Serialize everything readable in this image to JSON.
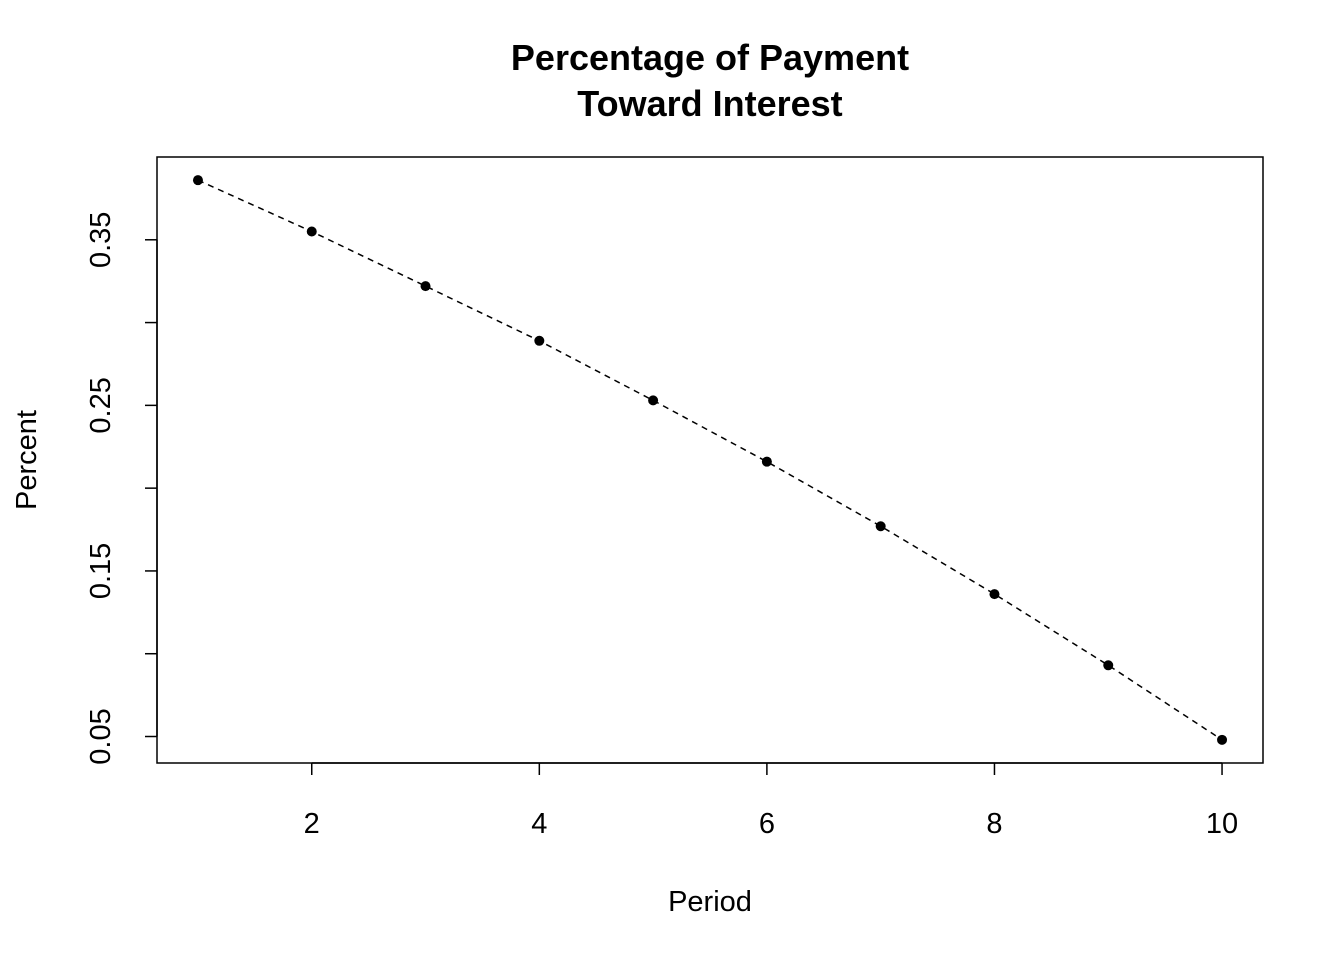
{
  "chart_data": {
    "type": "line",
    "title_lines": [
      "Percentage of Payment",
      "Toward Interest"
    ],
    "xlabel": "Period",
    "ylabel": "Percent",
    "x": [
      1,
      2,
      3,
      4,
      5,
      6,
      7,
      8,
      9,
      10
    ],
    "series": [
      {
        "values": [
          0.386,
          0.355,
          0.322,
          0.289,
          0.253,
          0.216,
          0.177,
          0.136,
          0.093,
          0.048
        ]
      }
    ],
    "xlim": [
      0.64,
      10.36
    ],
    "ylim": [
      0.034,
      0.4
    ],
    "xticks": [
      2,
      4,
      6,
      8,
      10
    ],
    "xtick_labels": [
      "2",
      "4",
      "6",
      "8",
      "10"
    ],
    "yticks": [
      0.05,
      0.1,
      0.15,
      0.2,
      0.25,
      0.3,
      0.35
    ],
    "ytick_labels": [
      "0.05",
      "",
      "0.15",
      "",
      "0.25",
      "",
      "0.35"
    ],
    "line_style": "dashed",
    "marker": "filled-circle",
    "color": "#000000",
    "grid": false,
    "legend": "none"
  }
}
